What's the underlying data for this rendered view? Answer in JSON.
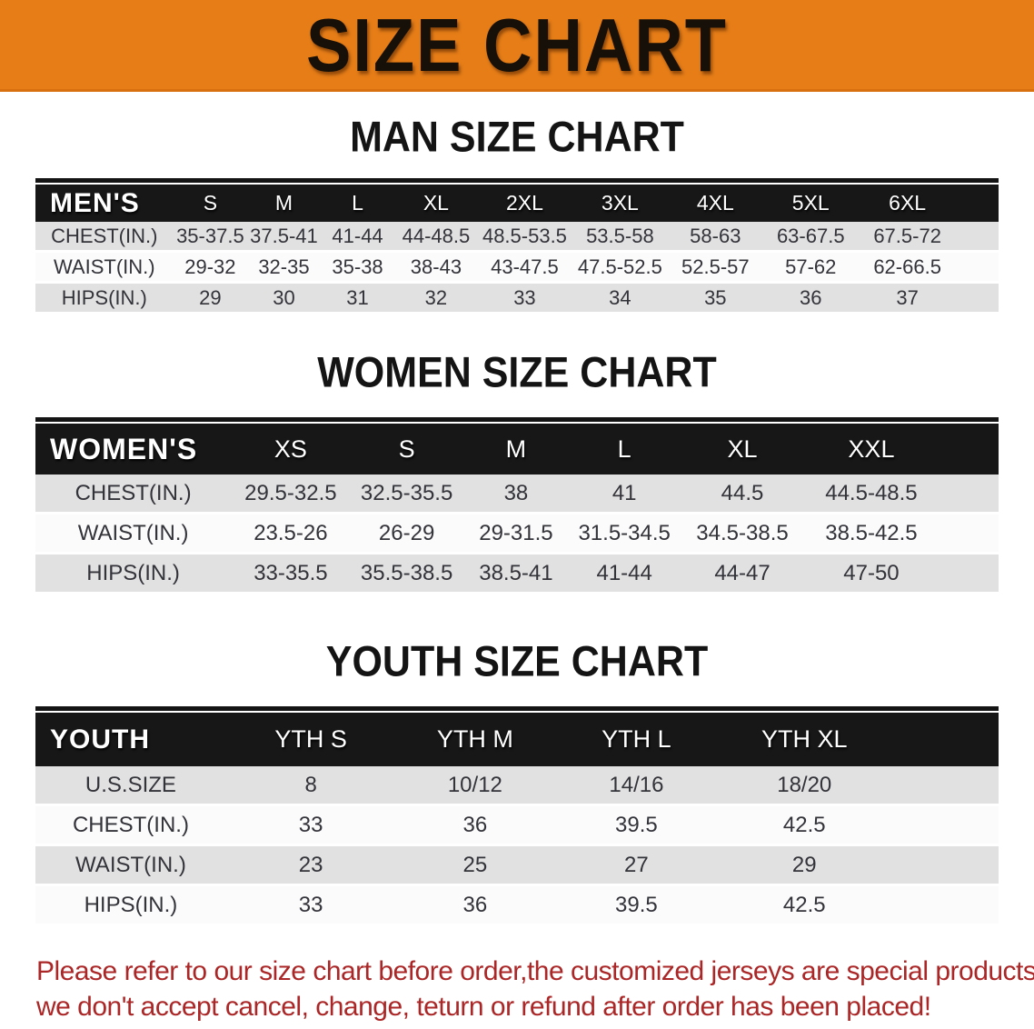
{
  "banner": {
    "title": "SIZE CHART",
    "bg_color": "#e67d17",
    "text_color": "#161008"
  },
  "sections": [
    {
      "heading": "MAN SIZE CHART",
      "table": {
        "header": [
          "MEN'S",
          "S",
          "M",
          "L",
          "XL",
          "2XL",
          "3XL",
          "4XL",
          "5XL",
          "6XL"
        ],
        "rows": [
          {
            "label": "CHEST(IN.)",
            "values": [
              "35-37.5",
              "37.5-41",
              "41-44",
              "44-48.5",
              "48.5-53.5",
              "53.5-58",
              "58-63",
              "63-67.5",
              "67.5-72"
            ]
          },
          {
            "label": "WAIST(IN.)",
            "values": [
              "29-32",
              "32-35",
              "35-38",
              "38-43",
              "43-47.5",
              "47.5-52.5",
              "52.5-57",
              "57-62",
              "62-66.5"
            ]
          },
          {
            "label": "HIPS(IN.)",
            "values": [
              "29",
              "30",
              "31",
              "32",
              "33",
              "34",
              "35",
              "36",
              "37"
            ]
          }
        ]
      }
    },
    {
      "heading": "WOMEN SIZE CHART",
      "table": {
        "header": [
          "WOMEN'S",
          "XS",
          "S",
          "M",
          "L",
          "XL",
          "XXL"
        ],
        "rows": [
          {
            "label": "CHEST(IN.)",
            "values": [
              "29.5-32.5",
              "32.5-35.5",
              "38",
              "41",
              "44.5",
              "44.5-48.5"
            ]
          },
          {
            "label": "WAIST(IN.)",
            "values": [
              "23.5-26",
              "26-29",
              "29-31.5",
              "31.5-34.5",
              "34.5-38.5",
              "38.5-42.5"
            ]
          },
          {
            "label": "HIPS(IN.)",
            "values": [
              "33-35.5",
              "35.5-38.5",
              "38.5-41",
              "41-44",
              "44-47",
              "47-50"
            ]
          }
        ]
      }
    },
    {
      "heading": "YOUTH SIZE CHART",
      "table": {
        "header": [
          "YOUTH",
          "YTH S",
          "YTH M",
          "YTH L",
          "YTH XL"
        ],
        "rows": [
          {
            "label": "U.S.SIZE",
            "values": [
              "8",
              "10/12",
              "14/16",
              "18/20"
            ]
          },
          {
            "label": "CHEST(IN.)",
            "values": [
              "33",
              "36",
              "39.5",
              "42.5"
            ]
          },
          {
            "label": "WAIST(IN.)",
            "values": [
              "23",
              "25",
              "27",
              "29"
            ]
          },
          {
            "label": "HIPS(IN.)",
            "values": [
              "33",
              "36",
              "39.5",
              "42.5"
            ]
          }
        ]
      }
    }
  ],
  "note": {
    "line1": "Please refer to our size chart before order,the customized jerseys are special products,",
    "line2": "we don't accept cancel, change, teturn or refund after order has been placed!",
    "text_color": "#ab2626"
  }
}
